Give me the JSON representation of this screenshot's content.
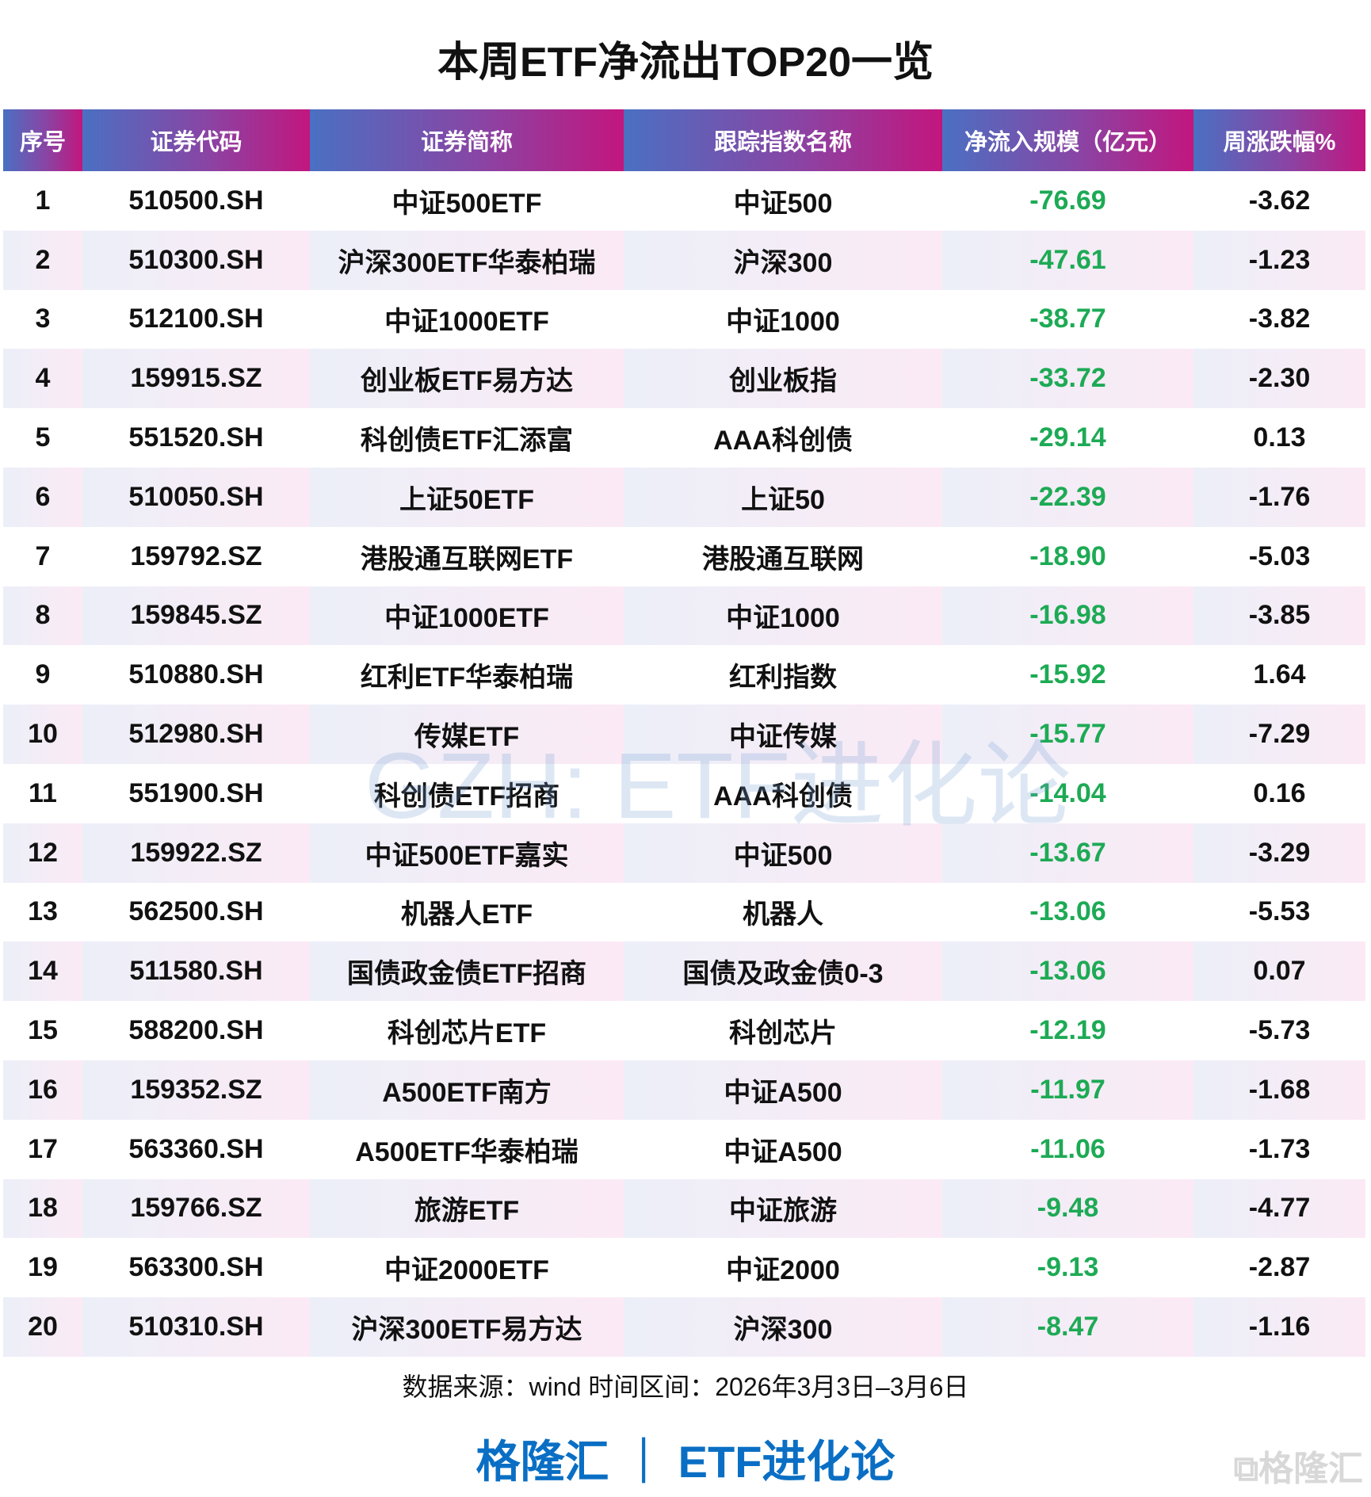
{
  "title": "本周ETF净流出TOP20一览",
  "headers": [
    "序号",
    "证券代码",
    "证券简称",
    "跟踪指数名称",
    "净流入规模（亿元）",
    "周涨跌幅%"
  ],
  "rows": [
    [
      "1",
      "510500.SH",
      "中证500ETF",
      "中证500",
      "-76.69",
      "-3.62"
    ],
    [
      "2",
      "510300.SH",
      "沪深300ETF华泰柏瑞",
      "沪深300",
      "-47.61",
      "-1.23"
    ],
    [
      "3",
      "512100.SH",
      "中证1000ETF",
      "中证1000",
      "-38.77",
      "-3.82"
    ],
    [
      "4",
      "159915.SZ",
      "创业板ETF易方达",
      "创业板指",
      "-33.72",
      "-2.30"
    ],
    [
      "5",
      "551520.SH",
      "科创债ETF汇添富",
      "AAA科创债",
      "-29.14",
      "0.13"
    ],
    [
      "6",
      "510050.SH",
      "上证50ETF",
      "上证50",
      "-22.39",
      "-1.76"
    ],
    [
      "7",
      "159792.SZ",
      "港股通互联网ETF",
      "港股通互联网",
      "-18.90",
      "-5.03"
    ],
    [
      "8",
      "159845.SZ",
      "中证1000ETF",
      "中证1000",
      "-16.98",
      "-3.85"
    ],
    [
      "9",
      "510880.SH",
      "红利ETF华泰柏瑞",
      "红利指数",
      "-15.92",
      "1.64"
    ],
    [
      "10",
      "512980.SH",
      "传媒ETF",
      "中证传媒",
      "-15.77",
      "-7.29"
    ],
    [
      "11",
      "551900.SH",
      "科创债ETF招商",
      "AAA科创债",
      "-14.04",
      "0.16"
    ],
    [
      "12",
      "159922.SZ",
      "中证500ETF嘉实",
      "中证500",
      "-13.67",
      "-3.29"
    ],
    [
      "13",
      "562500.SH",
      "机器人ETF",
      "机器人",
      "-13.06",
      "-5.53"
    ],
    [
      "14",
      "511580.SH",
      "国债政金债ETF招商",
      "国债及政金债0-3",
      "-13.06",
      "0.07"
    ],
    [
      "15",
      "588200.SH",
      "科创芯片ETF",
      "科创芯片",
      "-12.19",
      "-5.73"
    ],
    [
      "16",
      "159352.SZ",
      "A500ETF南方",
      "中证A500",
      "-11.97",
      "-1.68"
    ],
    [
      "17",
      "563360.SH",
      "A500ETF华泰柏瑞",
      "中证A500",
      "-11.06",
      "-1.73"
    ],
    [
      "18",
      "159766.SZ",
      "旅游ETF",
      "中证旅游",
      "-9.48",
      "-4.77"
    ],
    [
      "19",
      "563300.SH",
      "中证2000ETF",
      "中证2000",
      "-9.13",
      "-2.87"
    ],
    [
      "20",
      "510310.SH",
      "沪深300ETF易方达",
      "沪深300",
      "-8.47",
      "-1.16"
    ]
  ],
  "watermark": "GZH: ETF进化论",
  "source": "数据来源：wind 时间区间：2026年3月3日–3月6日",
  "brand": "格隆汇 ｜ ETF进化论",
  "logo": "格隆汇",
  "colors": {
    "header_start": "#4a70c2",
    "header_end": "#c2167e",
    "net_flow": "#1daa55",
    "brand": "#0a6fc4"
  }
}
